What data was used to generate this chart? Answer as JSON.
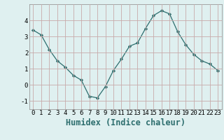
{
  "x": [
    0,
    1,
    2,
    3,
    4,
    5,
    6,
    7,
    8,
    9,
    10,
    11,
    12,
    13,
    14,
    15,
    16,
    17,
    18,
    19,
    20,
    21,
    22,
    23
  ],
  "y": [
    3.4,
    3.1,
    2.2,
    1.5,
    1.1,
    0.6,
    0.3,
    -0.7,
    -0.8,
    -0.1,
    0.9,
    1.6,
    2.4,
    2.6,
    3.5,
    4.3,
    4.6,
    4.4,
    3.3,
    2.5,
    1.9,
    1.5,
    1.3,
    0.9
  ],
  "xlabel": "Humidex (Indice chaleur)",
  "xlim": [
    -0.5,
    23.5
  ],
  "ylim": [
    -1.5,
    5.0
  ],
  "yticks": [
    -1,
    0,
    1,
    2,
    3,
    4
  ],
  "xticks": [
    0,
    1,
    2,
    3,
    4,
    5,
    6,
    7,
    8,
    9,
    10,
    11,
    12,
    13,
    14,
    15,
    16,
    17,
    18,
    19,
    20,
    21,
    22,
    23
  ],
  "line_color": "#2d6e6e",
  "marker": "D",
  "marker_size": 2.2,
  "bg_color": "#dff0f0",
  "grid_color": "#c8aaaa",
  "tick_label_fontsize": 6.5,
  "xlabel_fontsize": 8.5
}
